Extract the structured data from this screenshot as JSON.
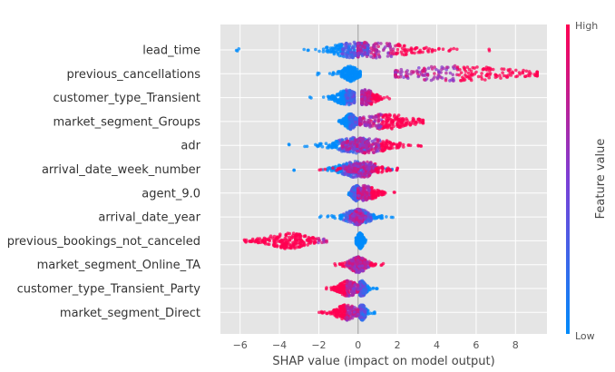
{
  "chart_data": {
    "type": "scatter",
    "subtype": "shap-beeswarm",
    "xlabel": "SHAP value (impact on model output)",
    "xlim": [
      -7,
      9.6
    ],
    "xticks": [
      -6,
      -4,
      -2,
      0,
      2,
      4,
      6,
      8
    ],
    "grid": true,
    "colorbar": {
      "title": "Feature value",
      "high_label": "High",
      "low_label": "Low",
      "low_color": "#008bfb",
      "mid_color": "#7c3fd6",
      "high_color": "#ff0052"
    },
    "features": [
      {
        "name": "lead_time",
        "low": {
          "min": -6.2,
          "max": 0.5,
          "center": -0.3,
          "spread": 0.8
        },
        "high": {
          "min": 0.0,
          "max": 6.7,
          "center": 0.8,
          "spread": 1.6
        },
        "mid_center": 0.2
      },
      {
        "name": "previous_cancellations",
        "low": {
          "min": -2.1,
          "max": 0.1,
          "center": -0.4,
          "spread": 0.3
        },
        "high": {
          "min": 1.9,
          "max": 9.1,
          "center": 5.0,
          "spread": 2.5
        },
        "mid_center": 2.5
      },
      {
        "name": "customer_type_Transient",
        "low": {
          "min": -2.5,
          "max": -0.2,
          "center": -0.6,
          "spread": 0.4
        },
        "high": {
          "min": 0.2,
          "max": 1.6,
          "center": 0.4,
          "spread": 0.4
        },
        "mid_center": 0.0
      },
      {
        "name": "market_segment_Groups",
        "low": {
          "min": -1.0,
          "max": 0.0,
          "center": -0.4,
          "spread": 0.2
        },
        "high": {
          "min": 0.1,
          "max": 3.3,
          "center": 1.4,
          "spread": 1.0
        },
        "mid_center": 0.0
      },
      {
        "name": "adr",
        "low": {
          "min": -3.6,
          "max": 0.5,
          "center": -0.2,
          "spread": 0.8
        },
        "high": {
          "min": -0.8,
          "max": 3.3,
          "center": 0.5,
          "spread": 0.9
        },
        "mid_center": 0.0
      },
      {
        "name": "arrival_date_week_number",
        "low": {
          "min": -3.3,
          "max": 1.8,
          "center": -0.2,
          "spread": 0.6
        },
        "high": {
          "min": -2.0,
          "max": 2.0,
          "center": 0.3,
          "spread": 0.6
        },
        "mid_center": 0.0
      },
      {
        "name": "agent_9.0",
        "low": {
          "min": -0.5,
          "max": 0.2,
          "center": -0.1,
          "spread": 0.15
        },
        "high": {
          "min": 0.0,
          "max": 1.9,
          "center": 0.4,
          "spread": 0.4
        },
        "mid_center": 0.0
      },
      {
        "name": "arrival_date_year",
        "low": {
          "min": -2.0,
          "max": 1.8,
          "center": 0.0,
          "spread": 0.5
        },
        "high": {
          "min": -0.4,
          "max": 0.4,
          "center": 0.0,
          "spread": 0.15
        },
        "mid_center": 0.0
      },
      {
        "name": "previous_bookings_not_canceled",
        "low": {
          "min": -0.1,
          "max": 0.4,
          "center": 0.1,
          "spread": 0.1
        },
        "high": {
          "min": -5.8,
          "max": -1.6,
          "center": -3.5,
          "spread": 0.9
        },
        "mid_center": -1.0
      },
      {
        "name": "market_segment_Online_TA",
        "low": {
          "min": -0.5,
          "max": 0.4,
          "center": 0.0,
          "spread": 0.15
        },
        "high": {
          "min": -1.2,
          "max": 1.3,
          "center": 0.0,
          "spread": 0.35
        },
        "mid_center": 0.0
      },
      {
        "name": "customer_type_Transient_Party",
        "low": {
          "min": 0.1,
          "max": 1.0,
          "center": 0.2,
          "spread": 0.15
        },
        "high": {
          "min": -1.7,
          "max": 0.0,
          "center": -0.5,
          "spread": 0.35
        },
        "mid_center": 0.0
      },
      {
        "name": "market_segment_Direct",
        "low": {
          "min": 0.1,
          "max": 0.9,
          "center": 0.2,
          "spread": 0.12
        },
        "high": {
          "min": -2.0,
          "max": 0.0,
          "center": -0.6,
          "spread": 0.4
        },
        "mid_center": 0.0
      }
    ]
  }
}
